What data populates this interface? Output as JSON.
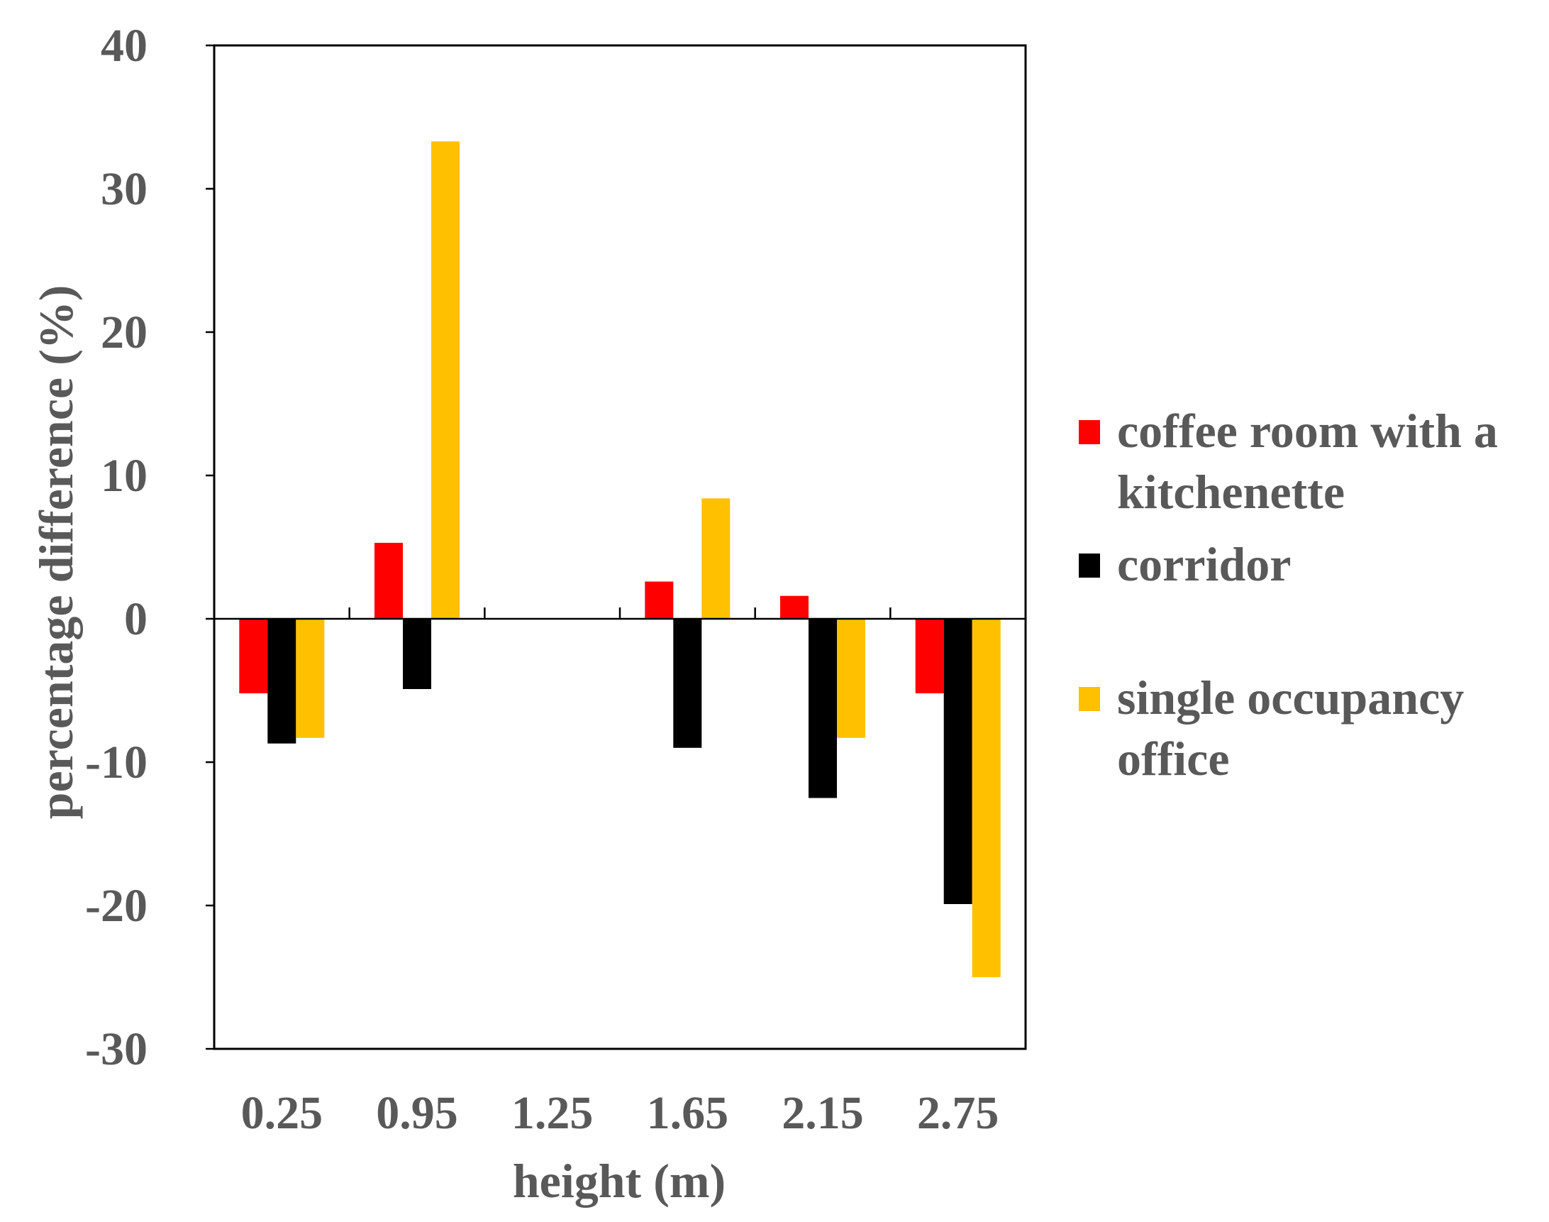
{
  "chart_data": {
    "type": "bar",
    "title": "",
    "xlabel": "height (m)",
    "ylabel": "percentage difference (%)",
    "categories": [
      "0.25",
      "0.95",
      "1.25",
      "1.65",
      "2.15",
      "2.75"
    ],
    "ylim": [
      -30,
      40
    ],
    "yticks": [
      "40",
      "30",
      "20",
      "10",
      "0",
      "-10",
      "-20",
      "-30"
    ],
    "grid": false,
    "legend_position": "right",
    "series": [
      {
        "name": "coffee room with a kitchenette",
        "legend_lines": [
          "coffee room with a",
          "kitchenette"
        ],
        "color": "#ff0000",
        "values": [
          -5.2,
          5.3,
          null,
          2.6,
          1.6,
          -5.2
        ]
      },
      {
        "name": "corridor",
        "legend_lines": [
          "corridor"
        ],
        "color": "#000000",
        "values": [
          -8.7,
          -4.9,
          null,
          -9.0,
          -12.5,
          -19.9
        ]
      },
      {
        "name": "single occupancy office",
        "legend_lines": [
          "single occupancy",
          "office"
        ],
        "color": "#ffc000",
        "values": [
          -8.3,
          33.3,
          null,
          8.4,
          -8.3,
          -25.0
        ]
      }
    ]
  }
}
